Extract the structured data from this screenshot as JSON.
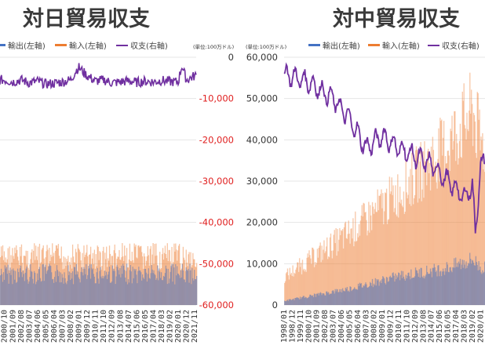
{
  "colors": {
    "export": "#4472c4",
    "import": "#ed7d31",
    "balance": "#7030a0",
    "neg_tick": "#e02020"
  },
  "chart_data": [
    {
      "type": "bar+line",
      "title": "対日貿易収支",
      "unit_label": "(単位:100万ドル)",
      "legend": [
        "輸出(左軸)",
        "輸入(左軸)",
        "収支(右軸)"
      ],
      "right_axis": {
        "ylim": [
          -60000,
          0
        ],
        "ticks": [
          "0",
          "-10,000",
          "-20,000",
          "-30,000",
          "-40,000",
          "-50,000",
          "-60,000"
        ]
      },
      "x_tick_labels": [
        "2000/10",
        "2001/09",
        "2002/08",
        "2003/07",
        "2004/06",
        "2005/05",
        "2006/04",
        "2007/03",
        "2008/02",
        "2009/01",
        "2009/12",
        "2010/11",
        "2011/10",
        "2012/09",
        "2013/08",
        "2014/07",
        "2015/06",
        "2016/05",
        "2017/04",
        "2018/03",
        "2019/02",
        "2020/01",
        "2020/12",
        "2021/11"
      ],
      "series_profile": {
        "balance": {
          "x": [
            "2000/10",
            "2001/09",
            "2002/08",
            "2003/07",
            "2004/06",
            "2005/05",
            "2006/04",
            "2007/03",
            "2008/02",
            "2008/10",
            "2009/01",
            "2009/12",
            "2010/11",
            "2011/10",
            "2012/09",
            "2013/08",
            "2014/07",
            "2015/06",
            "2016/05",
            "2017/04",
            "2018/03",
            "2019/02",
            "2020/01",
            "2020/06",
            "2020/12",
            "2021/11"
          ],
          "values": [
            -5500,
            -6000,
            -5500,
            -6200,
            -5800,
            -6500,
            -6300,
            -6000,
            -5500,
            -3000,
            -2500,
            -4500,
            -5800,
            -5500,
            -6200,
            -6000,
            -5700,
            -6100,
            -5800,
            -6000,
            -5600,
            -5900,
            -6000,
            -2000,
            -5500,
            -4500
          ]
        },
        "import": {
          "approx_level": [
            -45000,
            -52000
          ]
        },
        "export": {
          "approx_level": [
            -50000,
            -55000
          ]
        }
      }
    },
    {
      "type": "bar+line",
      "title": "対中貿易収支",
      "unit_label": "(単位:100万ドル)",
      "legend": [
        "輸出(左軸)",
        "輸入(左軸)",
        "収支(右軸)"
      ],
      "left_axis": {
        "ylim": [
          0,
          60000
        ],
        "ticks": [
          "0",
          "10,000",
          "20,000",
          "30,000",
          "40,000",
          "50,000",
          "60,000"
        ]
      },
      "x_tick_labels": [
        "1998/01",
        "1998/12",
        "1999/11",
        "2000/10",
        "2001/09",
        "2002/08",
        "2003/07",
        "2004/06",
        "2005/05",
        "2006/04",
        "2007/03",
        "2008/02",
        "2009/01",
        "2009/12",
        "2010/11",
        "2011/10",
        "2012/09",
        "2013/08",
        "2014/07",
        "2015/06",
        "2016/05",
        "2017/04",
        "2018/03",
        "2019/02",
        "2020/01"
      ],
      "series_profile": {
        "balance": {
          "x": [
            "1998/01",
            "2000/10",
            "2003/07",
            "2005/05",
            "2007/03",
            "2009/01",
            "2010/11",
            "2012/09",
            "2014/07",
            "2016/05",
            "2017/04",
            "2018/03",
            "2019/02",
            "2019/06",
            "2020/01"
          ],
          "values": [
            56000,
            54000,
            50000,
            45000,
            38000,
            41000,
            38000,
            36000,
            34000,
            30000,
            28000,
            26000,
            29000,
            17000,
            34000
          ]
        },
        "import": {
          "x": [
            "1998/01",
            "2005/05",
            "2010/11",
            "2016/05",
            "2019/02",
            "2020/01"
          ],
          "values": [
            7000,
            18000,
            28000,
            40000,
            48000,
            40000
          ]
        },
        "export": {
          "x": [
            "1998/01",
            "2005/05",
            "2010/11",
            "2016/05",
            "2019/02",
            "2020/01"
          ],
          "values": [
            1000,
            4000,
            7000,
            9000,
            11000,
            9000
          ]
        }
      }
    }
  ]
}
